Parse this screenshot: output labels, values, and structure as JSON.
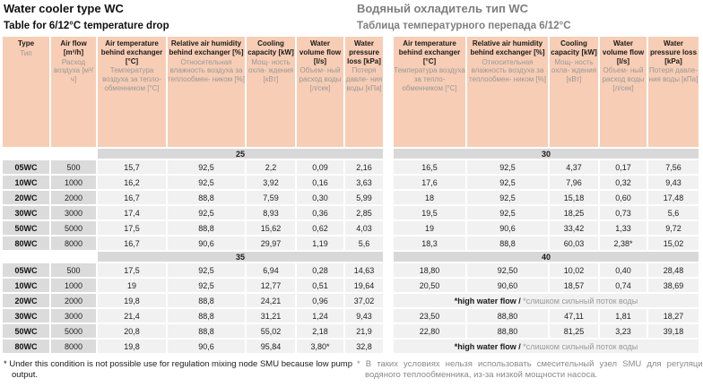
{
  "titles": {
    "en": "Water cooler type WC",
    "ru": "Водяный охладитель тип WC",
    "sub_en": "Table for 6/12°C temperature drop",
    "sub_ru": "Таблица температурного перепада 6/12°С"
  },
  "colors": {
    "header_bg": "#f7cdb5",
    "band_bg": "#d8d8d8",
    "type_cell_bg": "#dbdbdb",
    "data_cell_bg": "#f1f1f1",
    "russian_text": "#999999",
    "russian_title": "#7e7e7e"
  },
  "table": {
    "left_headers": [
      {
        "en": "Type",
        "ru": "Тип"
      },
      {
        "en": "Air flow [m³/h]",
        "ru": "Расход воздуха [м³/ч]"
      },
      {
        "en": "Air temperature behind exchanger [°C]",
        "ru": "Температура воздуха за тепло- обменником [°C]"
      },
      {
        "en": "Relative air humidity behind exchanger [%]",
        "ru": "Относительная влажность воздуха за теплообмен- ником [%]"
      },
      {
        "en": "Cooling capacity [kW]",
        "ru": "Мощ- ность охла- ждения [кВт]"
      },
      {
        "en": "Water volume flow [l/s]",
        "ru": "Объем- ный расход воды [л/сек]"
      },
      {
        "en": "Water pressure loss [kPa]",
        "ru": "Потеря давле- ния воды [кПа]"
      }
    ],
    "right_headers": [
      {
        "en": "Air temperature behind exchanger [°C]",
        "ru": "Температура воздуха за тепло- обменником [°C]"
      },
      {
        "en": "Relative air humidity behind exchanger [%]",
        "ru": "Относительная влажность воздуха за теплообмен- ником [%]"
      },
      {
        "en": "Cooling capacity [kW]",
        "ru": "Мощ- ность охла- ждения [кВт]"
      },
      {
        "en": "Water volume flow [l/s]",
        "ru": "Объем- ный расход воды [л/сек]"
      },
      {
        "en": "Water pressure loss [kPa]",
        "ru": "Потеря давле- ния воды [кПа]"
      }
    ],
    "note": {
      "en": "*high water flow / ",
      "ru": "*слишком сильный поток воды"
    },
    "sections": [
      {
        "left_label": "25",
        "right_label": "30",
        "rows": [
          {
            "type": "05WC",
            "flow": "500",
            "left": [
              "15,7",
              "92,5",
              "2,2",
              "0,09",
              "2,16"
            ],
            "right": [
              "16,5",
              "92,5",
              "4,37",
              "0,17",
              "7,56"
            ]
          },
          {
            "type": "10WC",
            "flow": "1000",
            "left": [
              "16,2",
              "92,5",
              "3,92",
              "0,16",
              "3,63"
            ],
            "right": [
              "17,6",
              "92,5",
              "7,96",
              "0,32",
              "9,43"
            ]
          },
          {
            "type": "20WC",
            "flow": "2000",
            "left": [
              "16,7",
              "88,8",
              "7,59",
              "0,30",
              "5,99"
            ],
            "right": [
              "18",
              "92,5",
              "15,18",
              "0,60",
              "17,48"
            ]
          },
          {
            "type": "30WC",
            "flow": "3000",
            "left": [
              "17,4",
              "92,5",
              "8,93",
              "0,36",
              "2,85"
            ],
            "right": [
              "19,5",
              "92,5",
              "18,25",
              "0,73",
              "5,6"
            ]
          },
          {
            "type": "50WC",
            "flow": "5000",
            "left": [
              "17,5",
              "88,8",
              "15,62",
              "0,62",
              "4,03"
            ],
            "right": [
              "19",
              "90,6",
              "33,42",
              "1,33",
              "9,72"
            ]
          },
          {
            "type": "80WC",
            "flow": "8000",
            "left": [
              "16,7",
              "90,6",
              "29,97",
              "1,19",
              "5,6"
            ],
            "right": [
              "18,3",
              "88,8",
              "60,03",
              "2,38*",
              "15,02"
            ]
          }
        ]
      },
      {
        "left_label": "35",
        "right_label": "40",
        "rows": [
          {
            "type": "05WC",
            "flow": "500",
            "left": [
              "17,5",
              "92,5",
              "6,94",
              "0,28",
              "14,63"
            ],
            "right": [
              "18,80",
              "92,50",
              "10,02",
              "0,40",
              "28,48"
            ]
          },
          {
            "type": "10WC",
            "flow": "1000",
            "left": [
              "19",
              "92,5",
              "12,77",
              "0,51",
              "19,64"
            ],
            "right": [
              "20,50",
              "90,60",
              "18,57",
              "0,74",
              "38,69"
            ]
          },
          {
            "type": "20WC",
            "flow": "2000",
            "left": [
              "19,8",
              "88,8",
              "24,21",
              "0,96",
              "37,02"
            ],
            "right_note": true
          },
          {
            "type": "30WC",
            "flow": "3000",
            "left": [
              "21,4",
              "88,8",
              "31,21",
              "1,24",
              "9,43"
            ],
            "right": [
              "23,50",
              "88,80",
              "47,11",
              "1,81",
              "18,27"
            ]
          },
          {
            "type": "50WC",
            "flow": "5000",
            "left": [
              "20,8",
              "88,8",
              "55,02",
              "2,18",
              "21,9"
            ],
            "right": [
              "22,80",
              "88,80",
              "81,25",
              "3,23",
              "39,18"
            ]
          },
          {
            "type": "80WC",
            "flow": "8000",
            "left": [
              "19,8",
              "90,6",
              "95,84",
              "3,80*",
              "32,8"
            ],
            "right_note": true
          }
        ]
      }
    ]
  },
  "footnotes": {
    "en": "* Under this condition is not possible use for regulation mixing node SMU because low pump output.",
    "ru": "* В таких условиях нельзя использовать смесительный узел SMU для регуляции водяного теплообменника, из-за низкой мощности насоса."
  }
}
